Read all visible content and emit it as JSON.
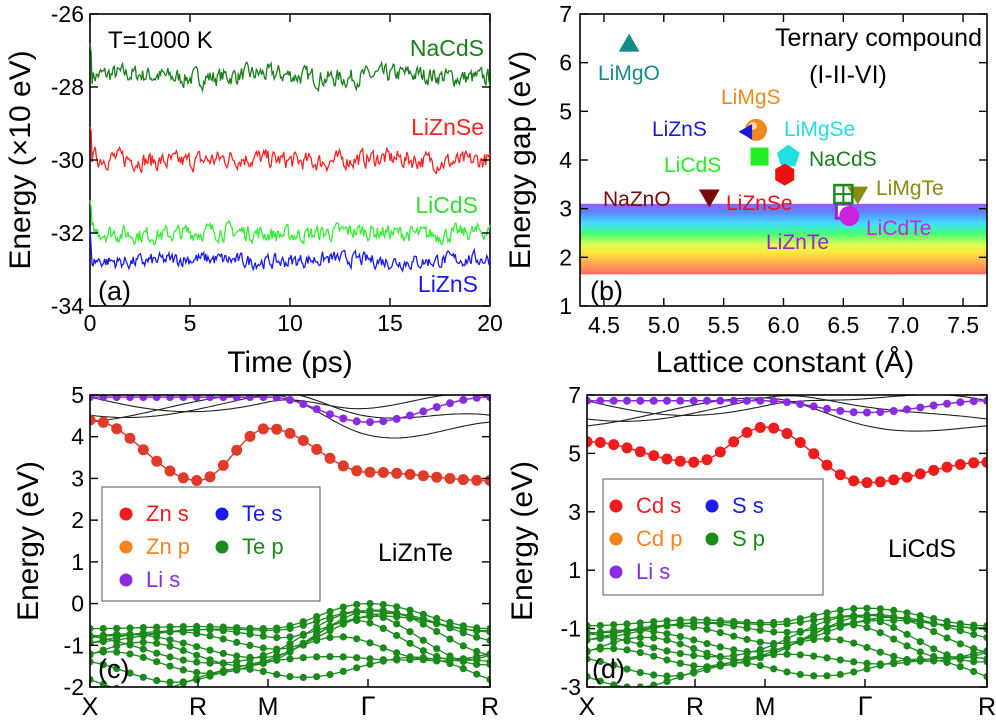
{
  "chart_data": [
    {
      "id": "a",
      "type": "line",
      "panel_label": "(a)",
      "annotation": "T=1000 K",
      "xlabel": "Time (ps)",
      "ylabel": "Energy (×10 eV)",
      "xlim": [
        0,
        20
      ],
      "ylim": [
        -34,
        -26
      ],
      "xticks": [
        0,
        5,
        10,
        15,
        20
      ],
      "yticks": [
        -34,
        -32,
        -30,
        -28,
        -26
      ],
      "series": [
        {
          "name": "NaCdS",
          "mean": -27.7,
          "noise": 0.22,
          "spike": -27.05,
          "color": "#1a7f1a"
        },
        {
          "name": "LiZnSe",
          "mean": -30.0,
          "noise": 0.22,
          "spike": -29.2,
          "color": "#ff2222"
        },
        {
          "name": "LiCdS",
          "mean": -32.0,
          "noise": 0.2,
          "spike": -31.3,
          "color": "#33ee33"
        },
        {
          "name": "LiZnS",
          "mean": -32.75,
          "noise": 0.17,
          "spike": -32.4,
          "color": "#1a1aee"
        }
      ]
    },
    {
      "id": "b",
      "type": "scatter",
      "panel_label": "(b)",
      "title": "Ternary compound",
      "subtitle": "(I-II-VI)",
      "xlabel": "Lattice constant (Å)",
      "ylabel": "Energy gap (eV)",
      "xlim": [
        4.3,
        7.7
      ],
      "ylim": [
        1,
        7
      ],
      "xticks": [
        4.5,
        5.0,
        5.5,
        6.0,
        6.5,
        7.0,
        7.5
      ],
      "xtick_labels": [
        "4.5",
        "5.0",
        "5.5",
        "6.0",
        "6.5",
        "7.0",
        "7.5"
      ],
      "yticks": [
        1,
        2,
        3,
        4,
        5,
        6,
        7
      ],
      "visible_band_eV": [
        1.65,
        3.1
      ],
      "points": [
        {
          "name": "LiMgO",
          "x": 4.71,
          "y": 6.35,
          "marker": "triangle-up",
          "color": "#168a8a"
        },
        {
          "name": "LiMgS",
          "x": 5.77,
          "y": 4.62,
          "marker": "sphere",
          "color": "#f08a1e"
        },
        {
          "name": "LiZnS",
          "x": 5.7,
          "y": 4.58,
          "marker": "triangle-left",
          "color": "#1a1ad4"
        },
        {
          "name": "LiMgSe",
          "x": 6.04,
          "y": 4.07,
          "marker": "pentagon",
          "color": "#22e0e0"
        },
        {
          "name": "LiCdS",
          "x": 5.8,
          "y": 4.07,
          "marker": "square",
          "color": "#22ee22"
        },
        {
          "name": "NaCdS",
          "x": 6.04,
          "y": 4.07,
          "marker": "pentagon",
          "color": "#22e0e0"
        },
        {
          "name": "LiZnSe",
          "x": 6.01,
          "y": 3.7,
          "marker": "hexagon",
          "color": "#ee1111"
        },
        {
          "name": "NaZnO",
          "x": 5.38,
          "y": 3.27,
          "marker": "triangle-down",
          "color": "#7a0a0a"
        },
        {
          "name": "LiMgTe",
          "x": 6.62,
          "y": 3.33,
          "marker": "triangle-down",
          "color": "#8a8a14"
        },
        {
          "name": "LiZnTe",
          "x": 6.5,
          "y": 2.95,
          "marker": "square-open",
          "color": "#9a22d4"
        },
        {
          "name": "LiCdTe",
          "x": 6.55,
          "y": 2.85,
          "marker": "circle",
          "color": "#cc22e0"
        }
      ],
      "grid_marker": {
        "name": "green-crossed-square",
        "x": 6.5,
        "y": 3.3,
        "color": "#1a8a1a"
      }
    },
    {
      "id": "c",
      "type": "line",
      "panel_label": "(c)",
      "compound": "LiZnTe",
      "ylabel": "Energy (eV)",
      "ylim": [
        -2,
        5
      ],
      "yticks": [
        -2,
        -1,
        0,
        1,
        2,
        3,
        4,
        5
      ],
      "kpoints": [
        "X",
        "R",
        "M",
        "Γ",
        "R"
      ],
      "kpoint_pos": [
        0,
        0.27,
        0.445,
        0.695,
        1.0
      ],
      "legend": [
        {
          "label": "Zn s",
          "color": "#ee1c1c"
        },
        {
          "label": "Te s",
          "color": "#1a1aee"
        },
        {
          "label": "Zn p",
          "color": "#f5841f"
        },
        {
          "label": "Te p",
          "color": "#1a8a1a"
        },
        {
          "label": "Li s",
          "color": "#8a2be2"
        }
      ],
      "conduction_band": {
        "values": [
          4.4,
          2.95,
          4.2,
          3.15,
          2.95
        ],
        "color": "#e03a2a"
      },
      "upper_bands": {
        "values": [
          4.95,
          4.95,
          4.95,
          4.35,
          4.95
        ],
        "color": "#8a2be2"
      },
      "valence_top": {
        "values": [
          -0.6,
          -0.55,
          -0.6,
          0.0,
          -0.6
        ],
        "color": "#1a8a1a"
      }
    },
    {
      "id": "d",
      "type": "line",
      "panel_label": "(d)",
      "compound": "LiCdS",
      "ylabel": "Energy (eV)",
      "ylim": [
        -3,
        7
      ],
      "yticks": [
        -3,
        -1,
        1,
        3,
        5,
        7
      ],
      "kpoints": [
        "X",
        "R",
        "M",
        "Γ",
        "R"
      ],
      "kpoint_pos": [
        0,
        0.27,
        0.445,
        0.695,
        1.0
      ],
      "legend": [
        {
          "label": "Cd s",
          "color": "#ee1c1c"
        },
        {
          "label": "S s",
          "color": "#1a1aee"
        },
        {
          "label": "Cd p",
          "color": "#f5841f"
        },
        {
          "label": "S p",
          "color": "#1a8a1a"
        },
        {
          "label": "Li  s",
          "color": "#8a2be2"
        }
      ],
      "conduction_band": {
        "values": [
          5.4,
          4.7,
          5.9,
          4.0,
          4.7
        ],
        "color": "#ee1c1c"
      },
      "upper_bands": {
        "values": [
          6.8,
          6.8,
          6.8,
          6.4,
          6.8
        ],
        "color": "#8a2be2"
      },
      "valence_top": {
        "values": [
          -0.9,
          -0.7,
          -0.8,
          -0.3,
          -0.9
        ],
        "color": "#1a8a1a"
      }
    }
  ]
}
